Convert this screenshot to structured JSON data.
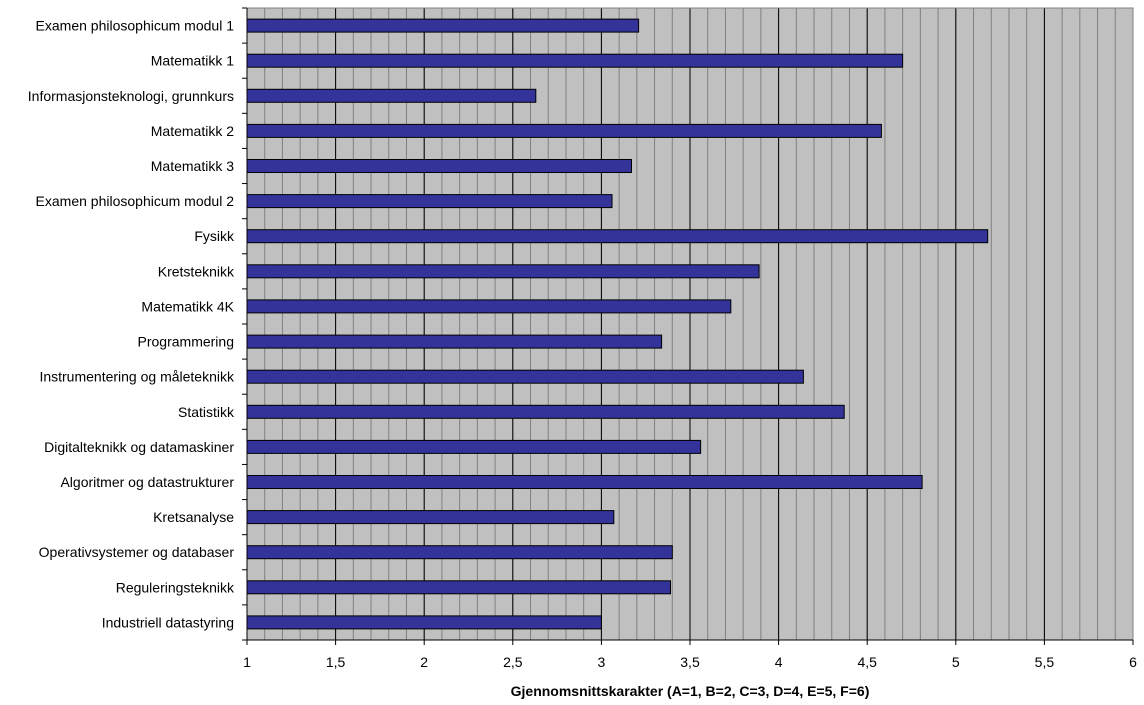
{
  "chart_data": {
    "type": "bar",
    "orientation": "horizontal",
    "title": "",
    "xlabel": "Gjennomsnittskarakter (A=1, B=2, C=3, D=4, E=5, F=6)",
    "ylabel": "",
    "xlim": [
      1,
      6
    ],
    "major_step": 0.5,
    "minor_step": 0.1,
    "grid": "major and minor vertical",
    "legend": "none",
    "x_ticks": [
      {
        "value": 1,
        "label": "1"
      },
      {
        "value": 1.5,
        "label": "1,5"
      },
      {
        "value": 2,
        "label": "2"
      },
      {
        "value": 2.5,
        "label": "2,5"
      },
      {
        "value": 3,
        "label": "3"
      },
      {
        "value": 3.5,
        "label": "3,5"
      },
      {
        "value": 4,
        "label": "4"
      },
      {
        "value": 4.5,
        "label": "4,5"
      },
      {
        "value": 5,
        "label": "5"
      },
      {
        "value": 5.5,
        "label": "5,5"
      },
      {
        "value": 6,
        "label": "6"
      }
    ],
    "categories": [
      "Examen philosophicum modul 1",
      "Matematikk 1",
      "Informasjonsteknologi, grunnkurs",
      "Matematikk 2",
      "Matematikk 3",
      "Examen philosophicum modul 2",
      "Fysikk",
      "Kretsteknikk",
      "Matematikk 4K",
      "Programmering",
      "Instrumentering og måleteknikk",
      "Statistikk",
      "Digitalteknikk og datamaskiner",
      "Algoritmer og datastrukturer",
      "Kretsanalyse",
      "Operativsystemer og databaser",
      "Reguleringsteknikk",
      "Industriell datastyring"
    ],
    "values": [
      3.21,
      4.7,
      2.63,
      4.58,
      3.17,
      3.06,
      5.18,
      3.89,
      3.73,
      3.34,
      4.14,
      4.37,
      3.56,
      4.81,
      3.07,
      3.4,
      3.39,
      3.0
    ]
  },
  "colors": {
    "bar_fill": "#333399",
    "bar_stroke": "#000000",
    "plot_background": "#c0c0c0",
    "major_grid": "#000000",
    "minor_grid": "#808080"
  }
}
